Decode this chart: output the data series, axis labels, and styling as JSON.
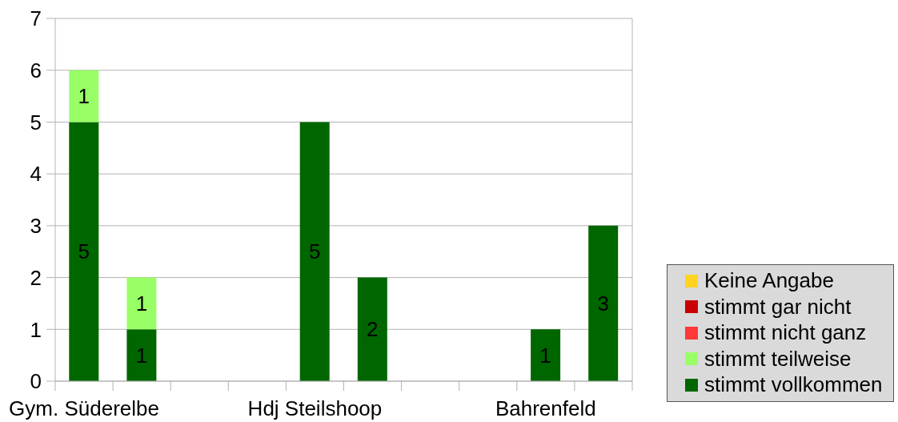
{
  "chart_data": {
    "type": "bar",
    "stacked": true,
    "categories": [
      "Gym. Süderelbe",
      null,
      null,
      null,
      "Hdj Steilshoop",
      null,
      null,
      null,
      "Bahrenfeld",
      null
    ],
    "series": [
      {
        "name": "stimmt vollkommen",
        "color": "#006600",
        "values": [
          5,
          1,
          null,
          null,
          5,
          2,
          null,
          null,
          1,
          3
        ]
      },
      {
        "name": "stimmt teilweise",
        "color": "#99ff66",
        "values": [
          1,
          1,
          null,
          null,
          null,
          null,
          null,
          null,
          null,
          null
        ]
      },
      {
        "name": "stimmt nicht ganz",
        "color": "#ff3838",
        "values": [
          null,
          null,
          null,
          null,
          null,
          null,
          null,
          null,
          null,
          null
        ]
      },
      {
        "name": "stimmt gar nicht",
        "color": "#c80000",
        "values": [
          null,
          null,
          null,
          null,
          null,
          null,
          null,
          null,
          null,
          null
        ]
      },
      {
        "name": "Keine Angabe",
        "color": "#ffd320",
        "values": [
          null,
          null,
          null,
          null,
          null,
          null,
          null,
          null,
          null,
          null
        ]
      }
    ],
    "ylim": [
      0,
      7
    ],
    "yticks": [
      0,
      1,
      2,
      3,
      4,
      5,
      6,
      7
    ],
    "grid": "y",
    "legend": "bottom right",
    "data_labels": true
  }
}
